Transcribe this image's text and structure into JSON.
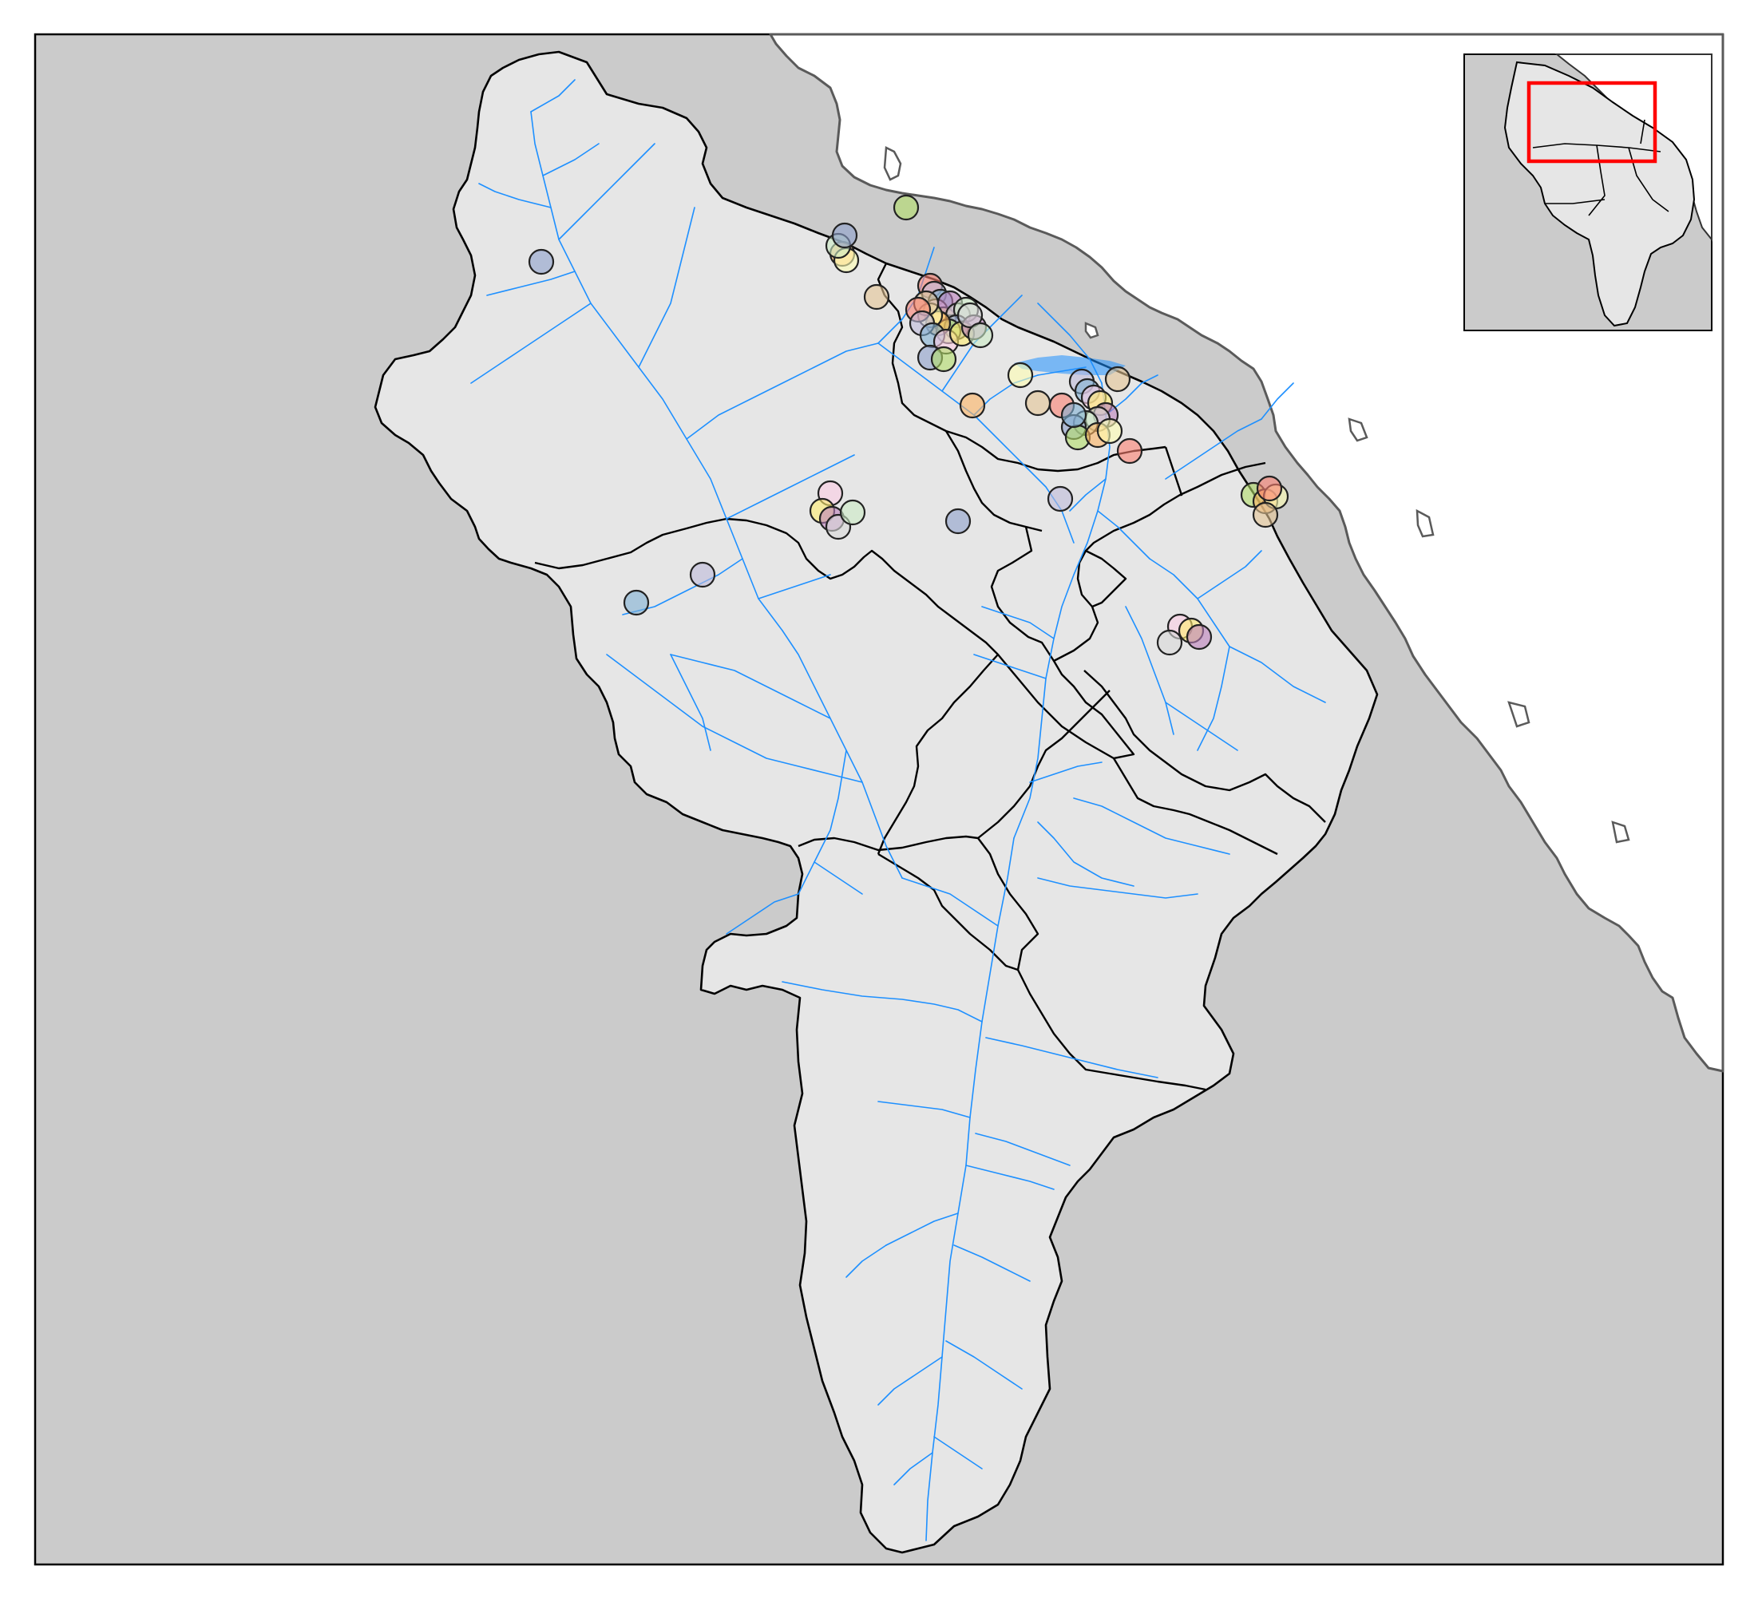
{
  "map": {
    "background_color": "#cbcbcb",
    "sea_color": "#ffffff",
    "catchment_fill": "#e6e6e6",
    "boundary_color": "#000000",
    "coastline_color": "#5a5a5a",
    "river_color": "#1e90ff",
    "site_stroke": "#222222",
    "site_palette": [
      "#8da0cb",
      "#b3de69",
      "#fdb462",
      "#ffffb3",
      "#e5c494",
      "#fb8072",
      "#bebada",
      "#80b1d3",
      "#fccde5",
      "#ffed6f",
      "#bc80bd",
      "#d9d9d9",
      "#ccebc5"
    ]
  },
  "inset": {
    "highlight_color": "#ff0000",
    "frame_color": "#000000"
  }
}
